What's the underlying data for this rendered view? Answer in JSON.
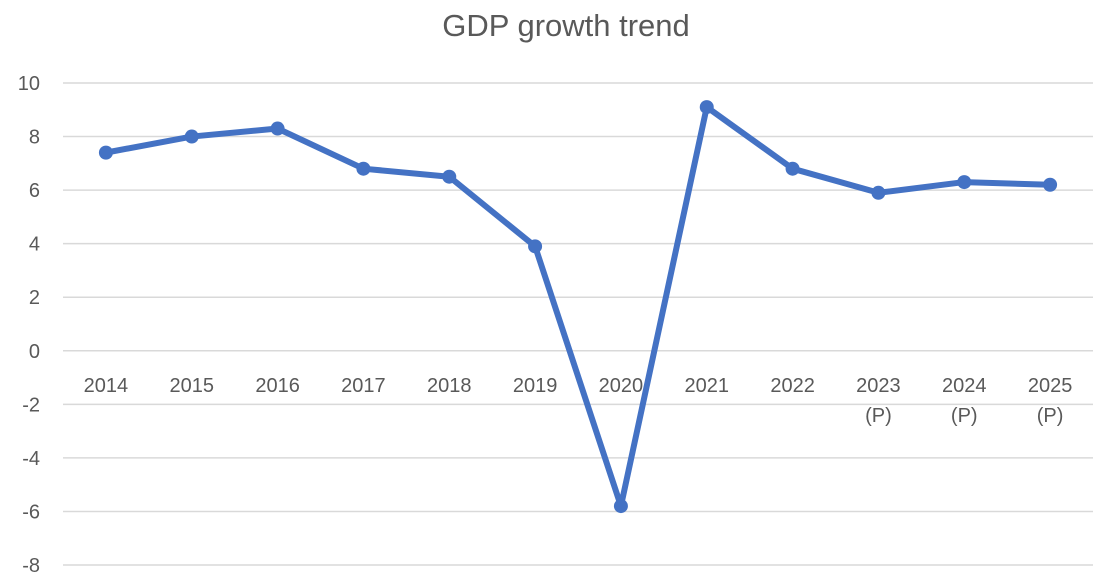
{
  "chart_data": {
    "type": "line",
    "title": "GDP growth trend",
    "xlabel": "",
    "ylabel": "",
    "categories": [
      [
        "2014"
      ],
      [
        "2015"
      ],
      [
        "2016"
      ],
      [
        "2017"
      ],
      [
        "2018"
      ],
      [
        "2019"
      ],
      [
        "2020"
      ],
      [
        "2021"
      ],
      [
        "2022"
      ],
      [
        "2023",
        "(P)"
      ],
      [
        "2024",
        "(P)"
      ],
      [
        "2025",
        "(P)"
      ]
    ],
    "series": [
      {
        "values": [
          7.4,
          8.0,
          8.3,
          6.8,
          6.5,
          3.9,
          -5.8,
          9.1,
          6.8,
          5.9,
          6.3,
          6.2
        ],
        "color": "#4472c4"
      }
    ],
    "ylim": [
      -8,
      10
    ],
    "yticks": [
      "10",
      "8",
      "6",
      "4",
      "2",
      "0",
      "-2",
      "-4",
      "-6",
      "-8"
    ],
    "grid": true,
    "legend": "none"
  }
}
